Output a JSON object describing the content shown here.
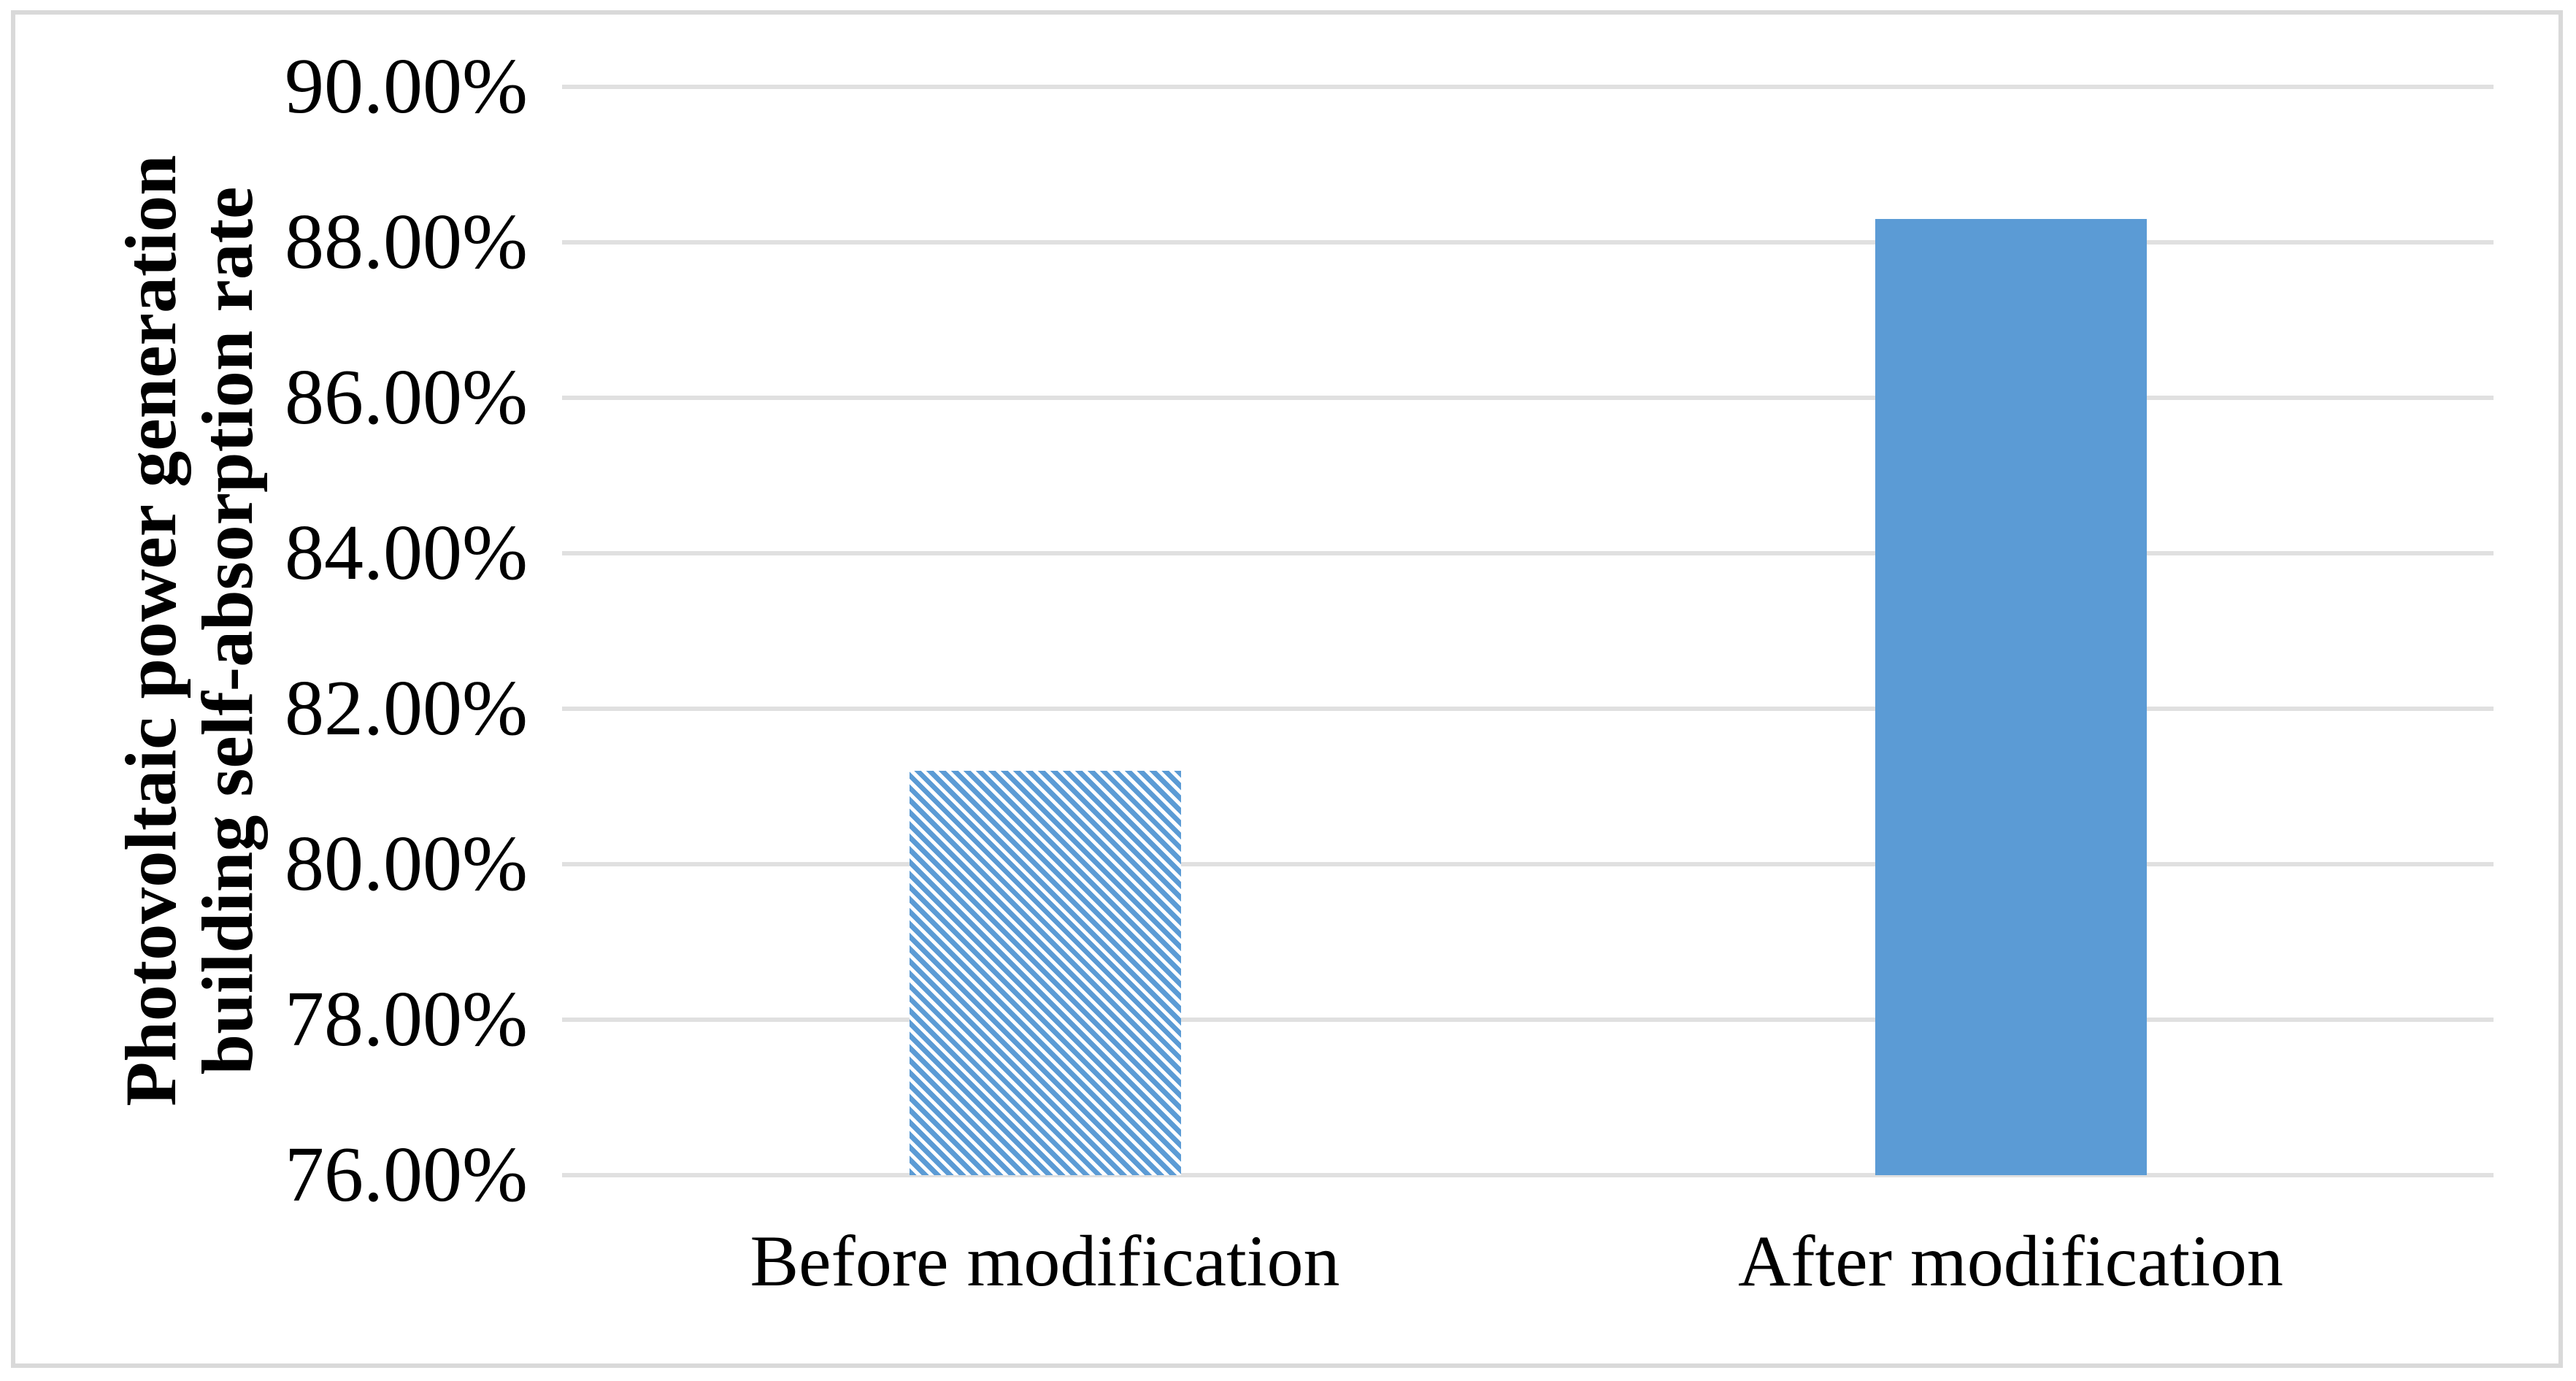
{
  "figure": {
    "background": "#ffffff",
    "border_color": "#d9d9d9"
  },
  "chart_data": {
    "type": "bar",
    "title": "",
    "categories": [
      "Before modification",
      "After modification"
    ],
    "values": [
      81.2,
      88.3
    ],
    "value_unit": "percent",
    "bar_styles": [
      "hatched",
      "solid"
    ],
    "hatch_angle_deg": 45,
    "bar_color": "#5b9bd5",
    "ylabel_lines": [
      "Photovoltaic power generation",
      "building self-absorption rate"
    ],
    "ylim": [
      76,
      90
    ],
    "ytick_step": 2,
    "ytick_labels_top_to_bottom": [
      "90.00%",
      "88.00%",
      "86.00%",
      "84.00%",
      "82.00%",
      "80.00%",
      "78.00%",
      "76.00%"
    ],
    "grid": true,
    "gridline_color": "#e0e0e0",
    "legend_position": "none",
    "xlabel": ""
  }
}
